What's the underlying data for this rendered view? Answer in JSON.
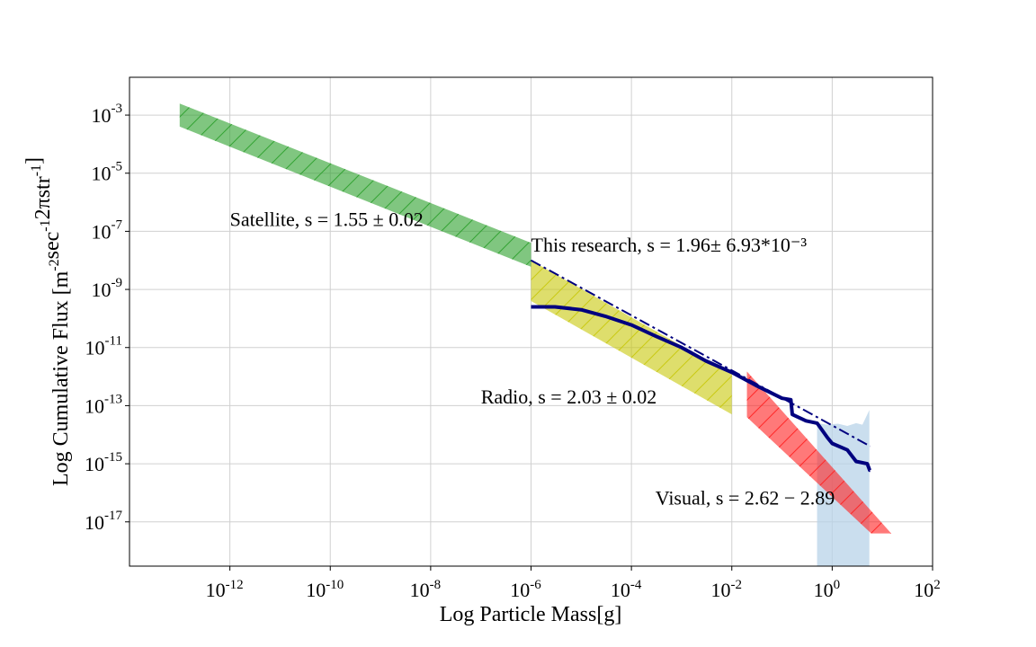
{
  "chart_data": {
    "type": "area",
    "title": "",
    "xlabel": "Log Particle Mass[g]",
    "ylabel": "Log Cumulative Flux [m^{-2}sec^{-1}2πstr^{-1}]",
    "x_scale": "log",
    "y_scale": "log",
    "xlim": [
      1e-14,
      100.0
    ],
    "ylim": [
      3e-19,
      0.02
    ],
    "grid": true,
    "x_ticks": [
      {
        "value": 1e-12,
        "base": "10",
        "exp": "-12"
      },
      {
        "value": 1e-10,
        "base": "10",
        "exp": "-10"
      },
      {
        "value": 1e-08,
        "base": "10",
        "exp": "-8"
      },
      {
        "value": 1e-06,
        "base": "10",
        "exp": "-6"
      },
      {
        "value": 0.0001,
        "base": "10",
        "exp": "-4"
      },
      {
        "value": 0.01,
        "base": "10",
        "exp": "-2"
      },
      {
        "value": 1,
        "base": "10",
        "exp": "0"
      },
      {
        "value": 100.0,
        "base": "10",
        "exp": "2"
      }
    ],
    "y_ticks": [
      {
        "value": 0.001,
        "base": "10",
        "exp": "-3"
      },
      {
        "value": 1e-05,
        "base": "10",
        "exp": "-5"
      },
      {
        "value": 1e-07,
        "base": "10",
        "exp": "-7"
      },
      {
        "value": 1e-09,
        "base": "10",
        "exp": "-9"
      },
      {
        "value": 1e-11,
        "base": "10",
        "exp": "-11"
      },
      {
        "value": 1e-13,
        "base": "10",
        "exp": "-13"
      },
      {
        "value": 1e-15,
        "base": "10",
        "exp": "-15"
      },
      {
        "value": 1e-17,
        "base": "10",
        "exp": "-17"
      }
    ],
    "bands": [
      {
        "color": "#2ca02c",
        "polygon": [
          [
            1e-13,
            0.0025
          ],
          [
            1e-06,
            4e-08
          ],
          [
            1e-06,
            6e-09
          ],
          [
            1e-13,
            0.0004
          ]
        ]
      },
      {
        "color": "#c8c80a",
        "polygon": [
          [
            1e-06,
            1e-08
          ],
          [
            0.01,
            1.2e-12
          ],
          [
            0.01,
            5e-14
          ],
          [
            1e-06,
            4e-10
          ]
        ]
      },
      {
        "color": "#ff2020",
        "polygon": [
          [
            0.02,
            1.5e-12
          ],
          [
            15,
            4e-18
          ],
          [
            6,
            4e-18
          ],
          [
            0.02,
            4e-14
          ]
        ]
      }
    ],
    "uncertainty_region": {
      "color": "#b8d3e8",
      "x": [
        0.5,
        0.5,
        0.8,
        1.3,
        2,
        3,
        4,
        5.5,
        5.5
      ],
      "y_upper": [
        4.8e-14,
        2.5e-14,
        2.2e-14,
        2.4e-14,
        2e-14,
        2.5e-14,
        2.2e-14,
        7e-14,
        7e-14
      ],
      "y_lower": [
        3e-19,
        3e-19,
        3e-19,
        3e-19,
        3e-19,
        3e-19,
        3e-19,
        3e-19,
        3e-19
      ]
    },
    "series": [
      {
        "style": "solid",
        "color": "#00007f",
        "x": [
          1e-06,
          3e-06,
          1e-05,
          3e-05,
          0.0001,
          0.0003,
          0.001,
          0.003,
          0.01,
          0.03,
          0.1,
          0.15,
          0.16,
          0.3,
          0.5,
          0.8,
          1,
          2,
          3,
          5,
          5.6,
          5.7
        ],
        "y": [
          2.5e-10,
          2.5e-10,
          2e-10,
          1.2e-10,
          6e-11,
          2.5e-11,
          1e-11,
          3.5e-12,
          1.4e-12,
          5e-13,
          1.8e-13,
          1.6e-13,
          5e-14,
          3e-14,
          2.5e-14,
          8e-15,
          5e-15,
          3e-15,
          1.2e-15,
          1e-15,
          6e-16,
          6e-16
        ]
      },
      {
        "style": "dashdot",
        "color": "#00007f",
        "x": [
          1e-06,
          5.7
        ],
        "y": [
          1e-08,
          4e-15
        ]
      }
    ],
    "annotations": [
      {
        "id": "satellite",
        "text": "Satellite, s = 1.55 ± 0.02",
        "x": 1e-12,
        "y": 1.5e-07,
        "color": "#000000"
      },
      {
        "id": "research",
        "text": "This research, s = 1.96± 6.93*10⁻³",
        "x": 1e-06,
        "y": 2e-08,
        "color": "#0000cc"
      },
      {
        "id": "radio",
        "text": "Radio, s = 2.03 ± 0.02",
        "x": 1e-07,
        "y": 1.2e-13,
        "color": "#000000"
      },
      {
        "id": "visual",
        "text": "Visual, s = 2.62 − 2.89",
        "x": 0.0003,
        "y": 4e-17,
        "color": "#000000"
      }
    ]
  }
}
